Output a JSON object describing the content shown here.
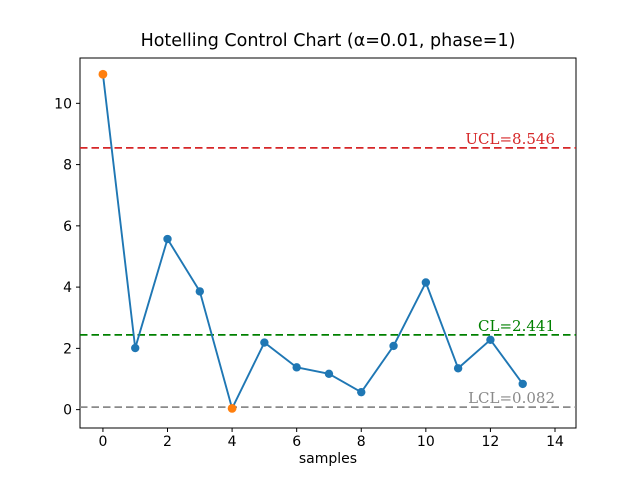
{
  "figure": {
    "background": "#ffffff"
  },
  "chart_data": {
    "type": "line",
    "title": "Hotelling Control Chart (α=0.01, phase=1)",
    "xlabel": "samples",
    "ylabel": "",
    "x": [
      0,
      1,
      2,
      3,
      4,
      5,
      6,
      7,
      8,
      9,
      10,
      11,
      12,
      13
    ],
    "values": [
      10.95,
      2.01,
      5.57,
      3.86,
      0.04,
      2.19,
      1.38,
      1.17,
      0.57,
      2.08,
      4.15,
      1.35,
      2.28,
      0.84
    ],
    "out_of_control_indices": [
      0,
      4
    ],
    "limits": [
      {
        "id": "ucl",
        "label": "UCL=8.546",
        "value": 8.546,
        "color": "#d62728"
      },
      {
        "id": "cl",
        "label": "CL=2.441",
        "value": 2.441,
        "color": "#008000"
      },
      {
        "id": "lcl",
        "label": "LCL=0.082",
        "value": 0.082,
        "color": "#8a8a8a"
      }
    ],
    "xticks": [
      0,
      2,
      4,
      6,
      8,
      10,
      12,
      14
    ],
    "yticks": [
      0,
      2,
      4,
      6,
      8,
      10
    ],
    "xlim": [
      -0.71,
      14.65
    ],
    "ylim": [
      -0.6,
      11.48
    ],
    "grid": false,
    "legend": false,
    "colors": {
      "series": "#1f77b4",
      "marker": "#1f77b4",
      "out_of_control_marker": "#ff7f0e",
      "axis": "#000000"
    }
  }
}
